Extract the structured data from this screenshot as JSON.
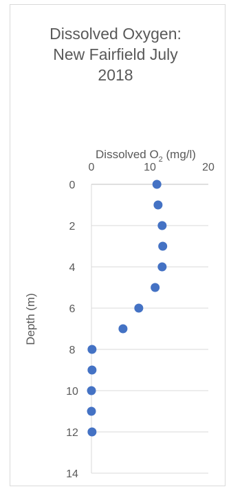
{
  "chart_data": {
    "type": "scatter",
    "title_lines": [
      "Dissolved Oxygen:",
      "New Fairfield July",
      "2018"
    ],
    "xlabel_main": "Dissolved O",
    "xlabel_sub": "2",
    "xlabel_tail": " (mg/l)",
    "ylabel": "Depth (m)",
    "xlim": [
      0,
      20
    ],
    "ylim": [
      0,
      14
    ],
    "y_inverted": true,
    "x_axis_position": "top",
    "x_ticks": [
      0,
      10,
      20
    ],
    "y_ticks": [
      0,
      2,
      4,
      6,
      8,
      10,
      12,
      14
    ],
    "grid": "horizontal",
    "marker_color": "#4472c4",
    "points": [
      {
        "x": 11.2,
        "y": 0
      },
      {
        "x": 11.4,
        "y": 1
      },
      {
        "x": 12.1,
        "y": 2
      },
      {
        "x": 12.2,
        "y": 3
      },
      {
        "x": 12.1,
        "y": 4
      },
      {
        "x": 10.9,
        "y": 5
      },
      {
        "x": 8.1,
        "y": 6
      },
      {
        "x": 5.4,
        "y": 7
      },
      {
        "x": 0.1,
        "y": 8
      },
      {
        "x": 0.1,
        "y": 9
      },
      {
        "x": 0.0,
        "y": 10
      },
      {
        "x": 0.0,
        "y": 11
      },
      {
        "x": 0.1,
        "y": 12
      }
    ]
  }
}
